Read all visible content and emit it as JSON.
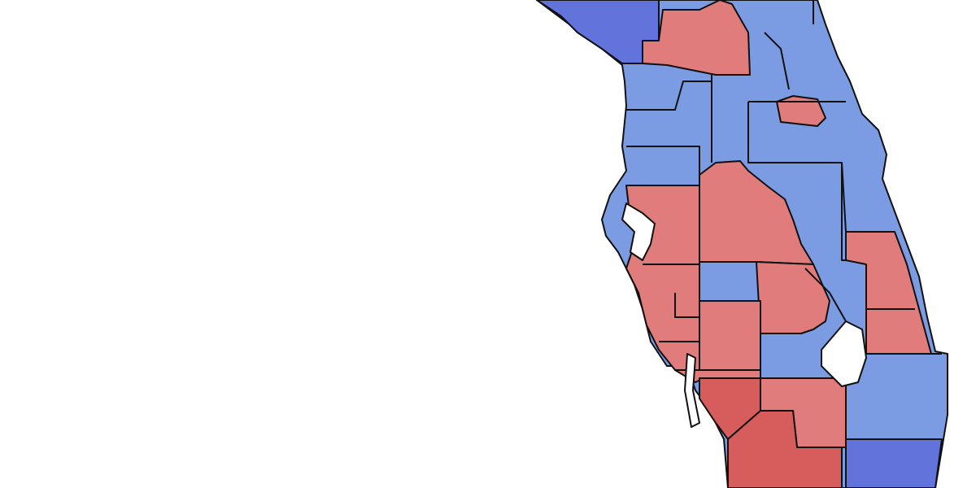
{
  "map": {
    "type": "choropleth",
    "colors": {
      "light_blue": "#7b9be2",
      "dark_blue": "#6373dc",
      "light_red": "#e07c7c",
      "dark_red": "#d75c5c",
      "water": "#ffffff",
      "border": "#111111"
    }
  }
}
